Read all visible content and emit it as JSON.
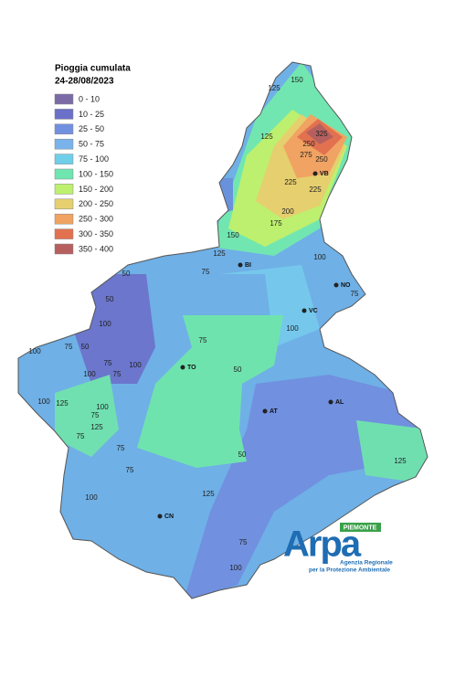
{
  "legend": {
    "title": "Pioggia cumulata",
    "subtitle": "24-28/08/2023",
    "items": [
      {
        "label": "0 - 10",
        "color": "#7a6aa6"
      },
      {
        "label": "10 - 25",
        "color": "#6b70c9"
      },
      {
        "label": "25 - 50",
        "color": "#7290e0"
      },
      {
        "label": "50 - 75",
        "color": "#7ab2ec"
      },
      {
        "label": "75 - 100",
        "color": "#6fcfe8"
      },
      {
        "label": "100 - 150",
        "color": "#6fe6b0"
      },
      {
        "label": "150 - 200",
        "color": "#bdf06e"
      },
      {
        "label": "200 - 250",
        "color": "#e6cf6e"
      },
      {
        "label": "250 - 300",
        "color": "#f0a362"
      },
      {
        "label": "300 - 350",
        "color": "#e27150"
      },
      {
        "label": "350 - 400",
        "color": "#b5605e"
      }
    ]
  },
  "cities": [
    "VB",
    "BI",
    "NO",
    "VC",
    "TO",
    "AT",
    "AL",
    "CN"
  ],
  "contour_labels": [
    "125",
    "150",
    "125",
    "250",
    "275",
    "325",
    "250",
    "225",
    "225",
    "200",
    "175",
    "150",
    "125",
    "100",
    "75",
    "50",
    "50",
    "75",
    "100",
    "75",
    "50",
    "100",
    "75",
    "100",
    "125",
    "100",
    "100",
    "75",
    "75",
    "100",
    "75",
    "75",
    "125",
    "75",
    "75",
    "100",
    "50",
    "50",
    "75",
    "100",
    "125",
    "100",
    "125"
  ],
  "logo": {
    "region": "PIEMONTE",
    "name": "Arpa",
    "line1": "Agenzia Regionale",
    "line2": "per la Protezione Ambientale"
  }
}
